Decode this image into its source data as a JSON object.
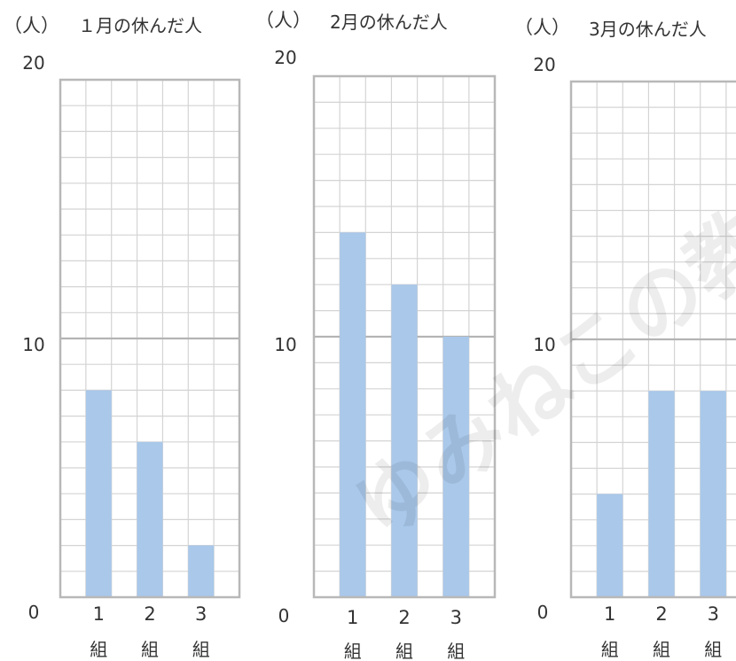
{
  "watermark": "ゆみねこの教科",
  "chart_data": [
    {
      "type": "bar",
      "unit": "（人）",
      "title": "１月の休んだ人",
      "categories": [
        "1",
        "2",
        "3"
      ],
      "category_suffix": "組",
      "values": [
        8,
        6,
        2
      ],
      "ylim": [
        0,
        20
      ],
      "ytick_labels": [
        "20",
        "10",
        "0"
      ],
      "grid": true,
      "bar_color": "#a9c8ea"
    },
    {
      "type": "bar",
      "unit": "（人）",
      "title": "2月の休んだ人",
      "categories": [
        "1",
        "2",
        "3"
      ],
      "category_suffix": "組",
      "values": [
        14,
        12,
        10
      ],
      "ylim": [
        0,
        20
      ],
      "ytick_labels": [
        "20",
        "10",
        "0"
      ],
      "grid": true,
      "bar_color": "#a9c8ea"
    },
    {
      "type": "bar",
      "unit": "（人）",
      "title": "3月の休んだ人",
      "categories": [
        "1",
        "2",
        "3"
      ],
      "category_suffix": "組",
      "values": [
        4,
        8,
        8
      ],
      "ylim": [
        0,
        20
      ],
      "ytick_labels": [
        "20",
        "10",
        "0"
      ],
      "grid": true,
      "bar_color": "#a9c8ea"
    }
  ]
}
